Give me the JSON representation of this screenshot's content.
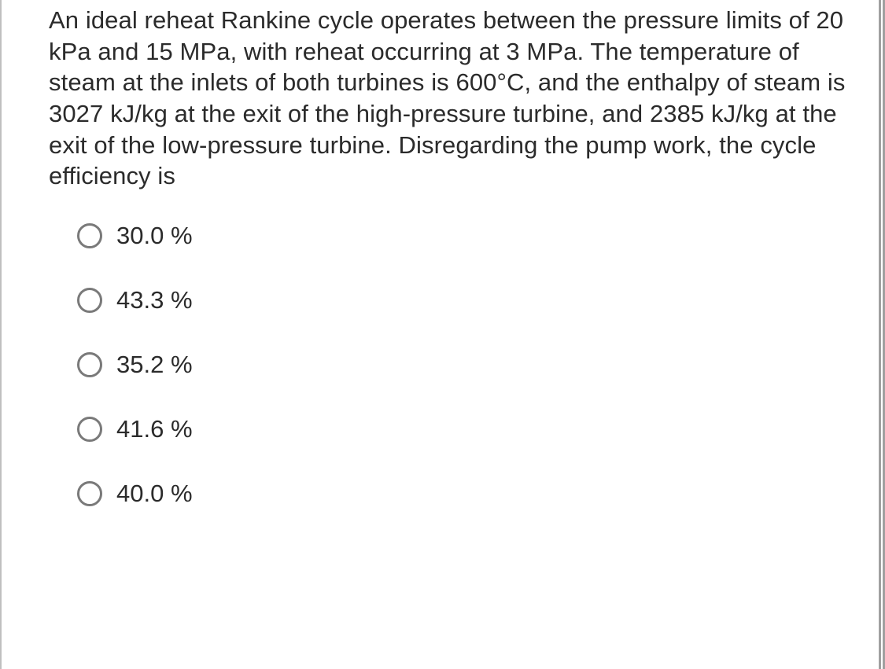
{
  "question": {
    "text": "An ideal reheat Rankine cycle operates between the pressure limits of 20 kPa and 15 MPa, with reheat occurring at 3 MPa. The temperature of steam at the inlets of both turbines is 600°C, and the enthalpy of steam is 3027 kJ/kg at the exit of the high-pressure turbine, and 2385 kJ/kg at the exit of the low-pressure turbine. Disregarding the pump work, the cycle efficiency is",
    "text_fontsize": 31,
    "text_color": "#2b2b2b",
    "background_color": "#ffffff"
  },
  "options": [
    {
      "label": "30.0 %",
      "selected": false
    },
    {
      "label": "43.3 %",
      "selected": false
    },
    {
      "label": "35.2 %",
      "selected": false
    },
    {
      "label": "41.6 %",
      "selected": false
    },
    {
      "label": "40.0 %",
      "selected": false
    }
  ],
  "radio_style": {
    "border_color": "#7a7a7a",
    "border_width": 3,
    "diameter": 32
  }
}
